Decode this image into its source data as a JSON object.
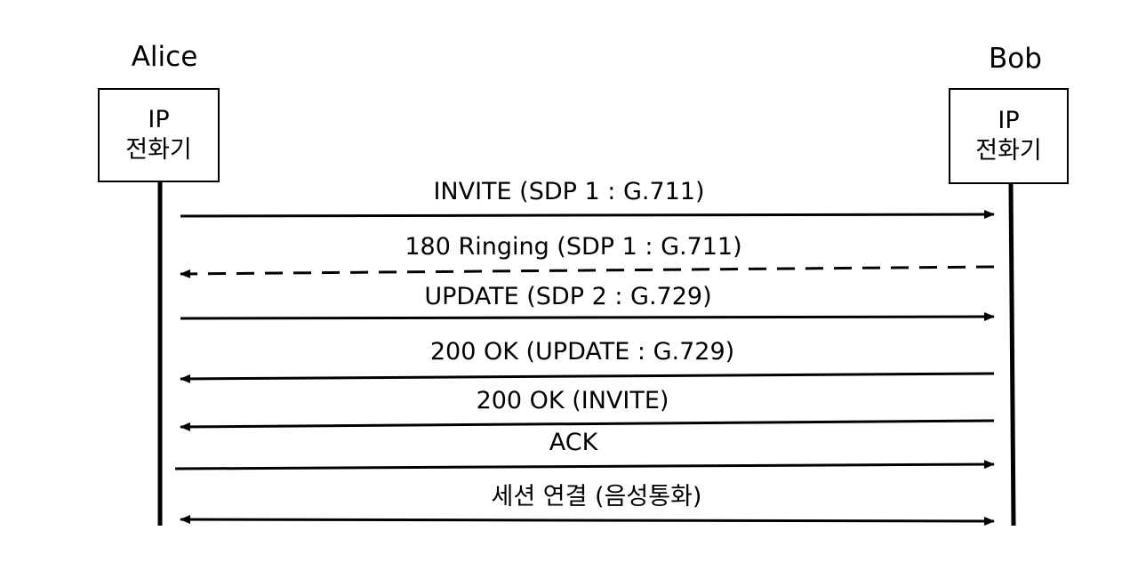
{
  "alice": {
    "name": "Alice",
    "device_line1": "IP",
    "device_line2": "전화기"
  },
  "bob": {
    "name": "Bob",
    "device_line1": "IP",
    "device_line2": "전화기"
  },
  "messages": [
    {
      "label": "INVITE (SDP 1 : G.711)",
      "direction": "to-bob",
      "style": "solid"
    },
    {
      "label": "180 Ringing (SDP 1 : G.711)",
      "direction": "to-alice",
      "style": "dashed"
    },
    {
      "label": "UPDATE (SDP 2 : G.729)",
      "direction": "to-bob",
      "style": "solid"
    },
    {
      "label": "200 OK (UPDATE : G.729)",
      "direction": "to-alice",
      "style": "solid"
    },
    {
      "label": "200 OK (INVITE)",
      "direction": "to-alice",
      "style": "solid"
    },
    {
      "label": "ACK",
      "direction": "to-bob",
      "style": "solid"
    },
    {
      "label": "세션 연결 (음성통화)",
      "direction": "both",
      "style": "solid"
    }
  ]
}
